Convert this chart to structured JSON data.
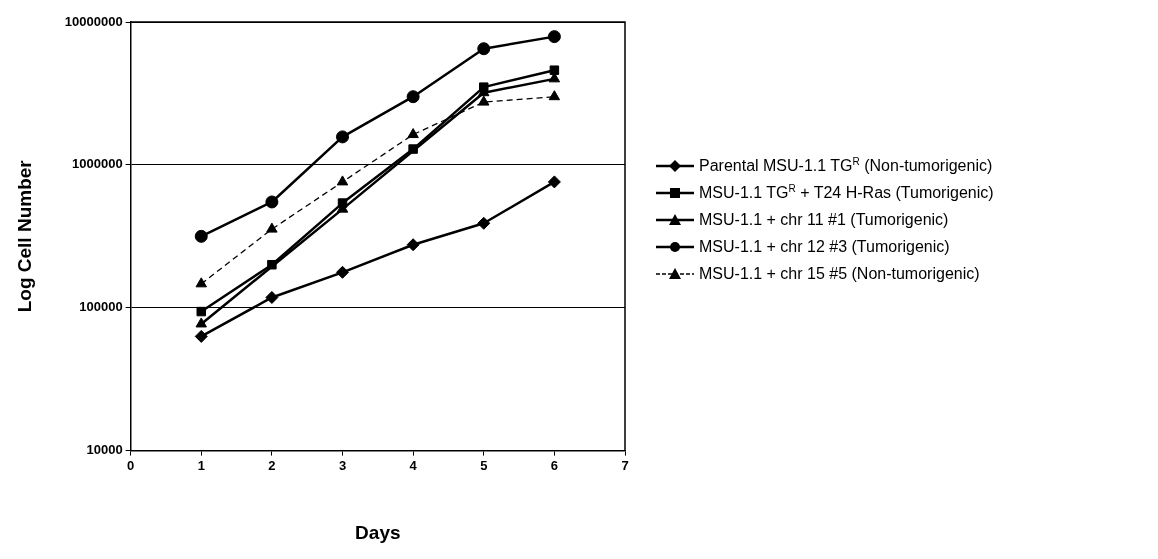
{
  "chart_data": {
    "type": "line",
    "xlabel": "Days",
    "ylabel": "Log Cell Number",
    "x": [
      1,
      2,
      3,
      4,
      5,
      6
    ],
    "xlim": [
      0,
      7
    ],
    "xticks": [
      0,
      1,
      2,
      3,
      4,
      5,
      6,
      7
    ],
    "ylim": [
      10000,
      10000000
    ],
    "yticks": [
      10000,
      100000,
      1000000,
      10000000
    ],
    "log": "y",
    "grid": "y",
    "legend": "right",
    "series": [
      {
        "name": "Parental MSU-1.1 TG$^{R}$ (Non-tumorigenic)",
        "color": "#000000",
        "marker": "diamond",
        "line_style": "solid",
        "values": [
          63000,
          118000,
          177000,
          276000,
          390000,
          760000
        ]
      },
      {
        "name": "MSU-1.1 TG$^{R}$ + T24 H-Ras (Tumorigenic)",
        "color": "#000000",
        "marker": "square",
        "line_style": "solid",
        "values": [
          94000,
          200000,
          540000,
          1290000,
          3500000,
          4600000
        ]
      },
      {
        "name": "MSU-1.1 + chr 11 #1 (Tumorigenic)",
        "color": "#000000",
        "marker": "triangle",
        "line_style": "solid",
        "values": [
          77000,
          null,
          490000,
          null,
          3200000,
          4000000
        ]
      },
      {
        "name": "MSU-1.1 + chr 12 #3 (Tumorigenic)",
        "color": "#000000",
        "marker": "circle",
        "line_style": "solid",
        "values": [
          316000,
          550000,
          1570000,
          3000000,
          6500000,
          7900000
        ]
      },
      {
        "name": "MSU-1.1 + chr 15 #5 (Non-tumorigenic)",
        "color": "#000000",
        "marker": "triangle",
        "line_style": "dashed",
        "values": [
          147000,
          355000,
          760000,
          1630000,
          2750000,
          3000000
        ]
      }
    ]
  }
}
